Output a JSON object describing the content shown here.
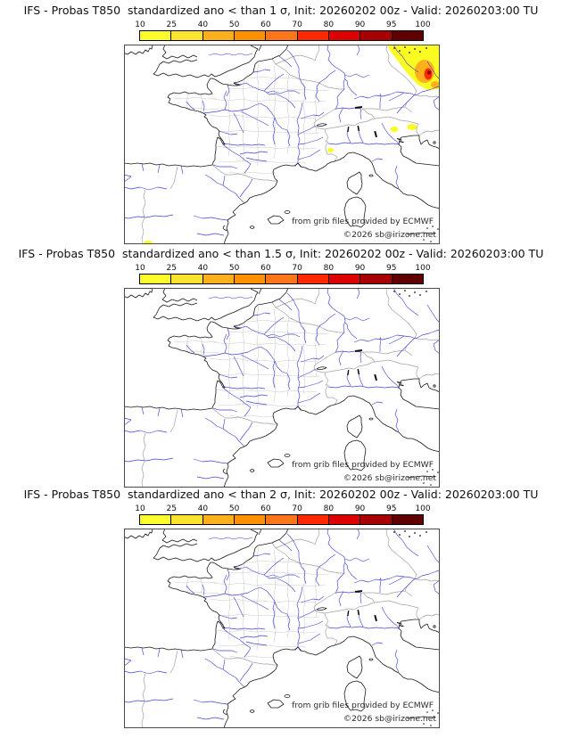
{
  "page": {
    "background": "#ffffff"
  },
  "colorbar": {
    "tick_labels": [
      "10",
      "25",
      "40",
      "50",
      "60",
      "70",
      "80",
      "90",
      "95",
      "100"
    ],
    "segment_colors": [
      "#fdfd2e",
      "#fbe32e",
      "#fdb01b",
      "#fd9100",
      "#fd7619",
      "#fd2900",
      "#de0000",
      "#a80000",
      "#610000"
    ]
  },
  "map_credits": {
    "provider": "from grib files provided by ECMWF",
    "copyright": "©2026 sb@irizone.net"
  },
  "panels": [
    {
      "title": "IFS - Probas T850  standardized ano < than 1 σ, Init: 20260202 00z - Valid: 20260203:00 TU",
      "has_anomaly_shading": true
    },
    {
      "title": "IFS - Probas T850  standardized ano < than 1.5 σ, Init: 20260202 00z - Valid: 20260203:00 TU",
      "has_anomaly_shading": false
    },
    {
      "title": "IFS - Probas T850  standardized ano < than 2 σ, Init: 20260202 00z - Valid: 20260203:00 TU",
      "has_anomaly_shading": false
    }
  ]
}
